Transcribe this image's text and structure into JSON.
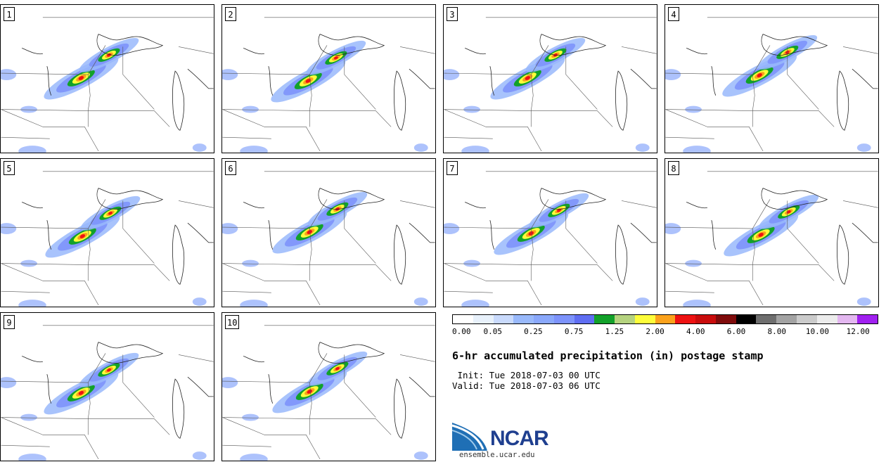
{
  "panels": [
    {
      "label": "1"
    },
    {
      "label": "2"
    },
    {
      "label": "3"
    },
    {
      "label": "4"
    },
    {
      "label": "5"
    },
    {
      "label": "6"
    },
    {
      "label": "7"
    },
    {
      "label": "8"
    },
    {
      "label": "9"
    },
    {
      "label": "10"
    }
  ],
  "colorbar": {
    "colors": [
      "#ffffff",
      "#e8f1fb",
      "#c9dafc",
      "#99b9fb",
      "#8aa8fb",
      "#7d93fb",
      "#5f6ef2",
      "#12a12a",
      "#b5d37f",
      "#fdfd3a",
      "#fba21c",
      "#ee1212",
      "#c90c0c",
      "#7f0b0b",
      "#000000",
      "#6e6e6e",
      "#a3a3a3",
      "#cbcbcb",
      "#ececec",
      "#e3b7f0",
      "#a020f0"
    ],
    "tick_labels": [
      "0.00",
      "0.05",
      "0.25",
      "0.75",
      "1.25",
      "2.00",
      "4.00",
      "6.00",
      "8.00",
      "10.00",
      "12.00"
    ]
  },
  "title": "6-hr accumulated precipitation (in) postage stamp",
  "init": " Init: Tue 2018-07-03 00 UTC",
  "valid": "Valid: Tue 2018-07-03 06 UTC",
  "logo": {
    "text": "NCAR",
    "url": "ensemble.ucar.edu"
  }
}
